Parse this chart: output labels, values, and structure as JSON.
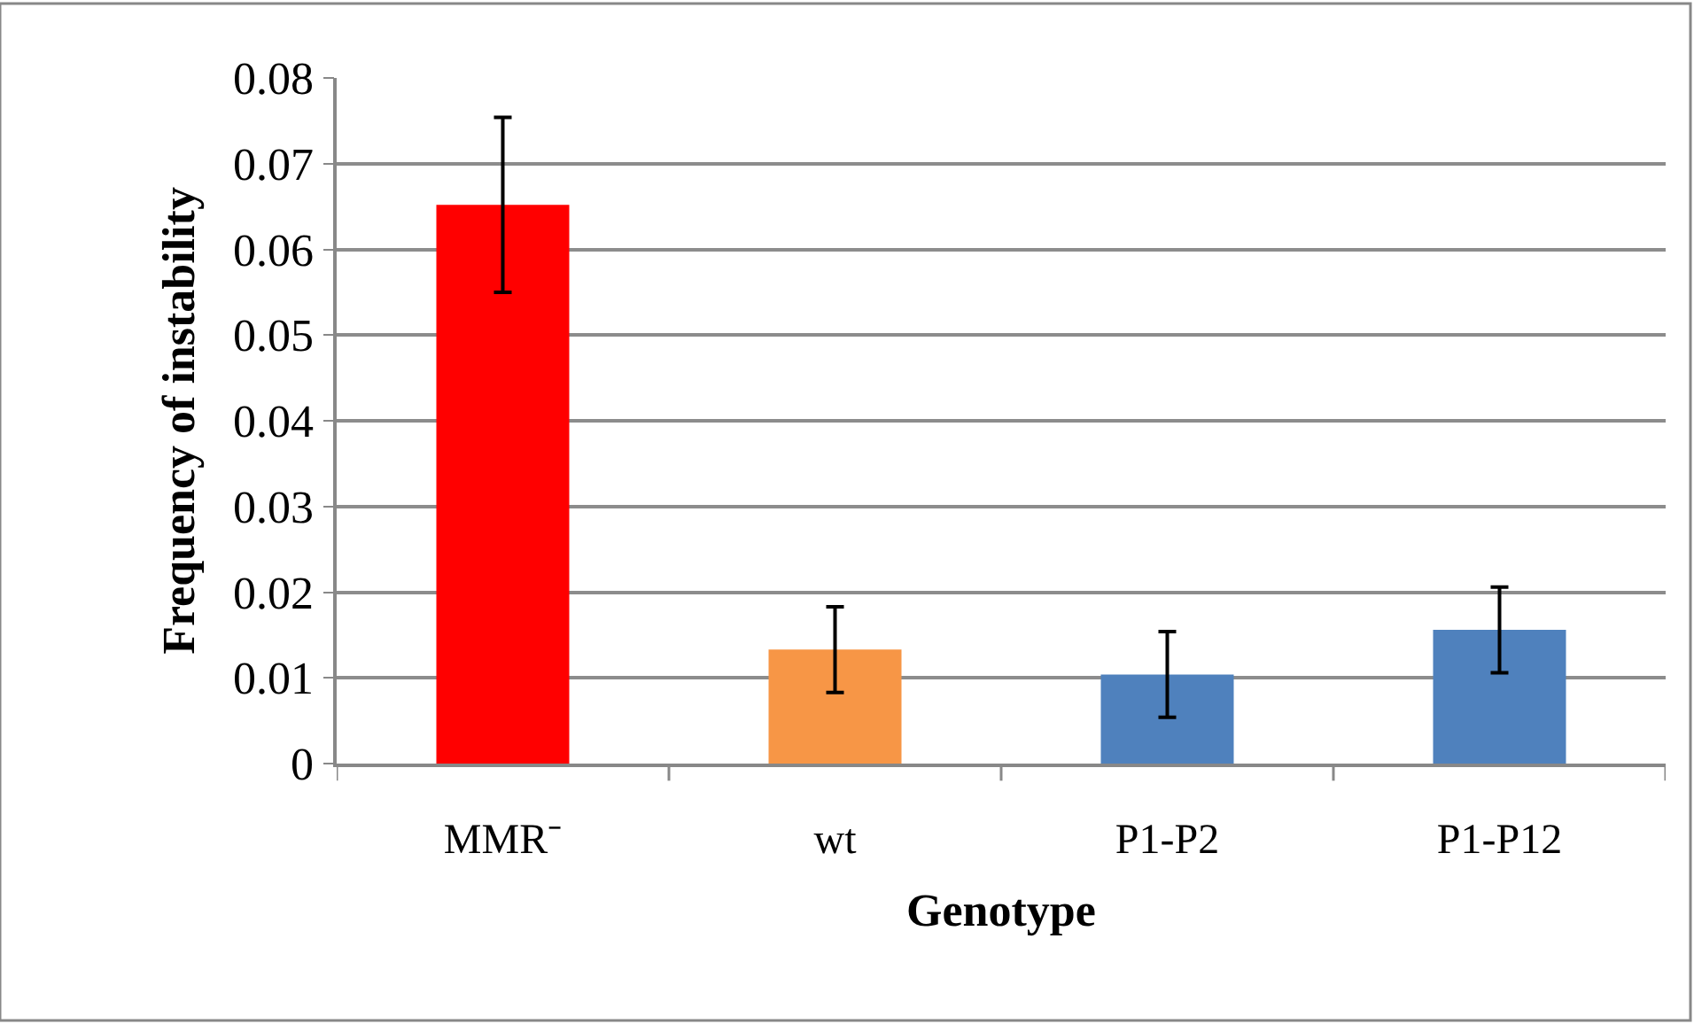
{
  "chart_data": {
    "type": "bar",
    "xlabel": "Genotype",
    "ylabel": "Frequency of instability",
    "categories": [
      "MMR⁻",
      "wt",
      "P1-P2",
      "P1-P12"
    ],
    "values": [
      0.0652,
      0.0133,
      0.0104,
      0.0156
    ],
    "colors": [
      "#ff0000",
      "#f79646",
      "#4f81bd",
      "#4f81bd"
    ],
    "errors": [
      0.0102,
      0.005,
      0.005,
      0.005
    ],
    "ylim": [
      0,
      0.08
    ],
    "yticks": [
      {
        "value": 0,
        "label": "0"
      },
      0.01,
      0.02,
      0.03,
      0.04,
      0.05,
      0.06,
      0.07,
      0.08
    ],
    "grid": "y"
  }
}
